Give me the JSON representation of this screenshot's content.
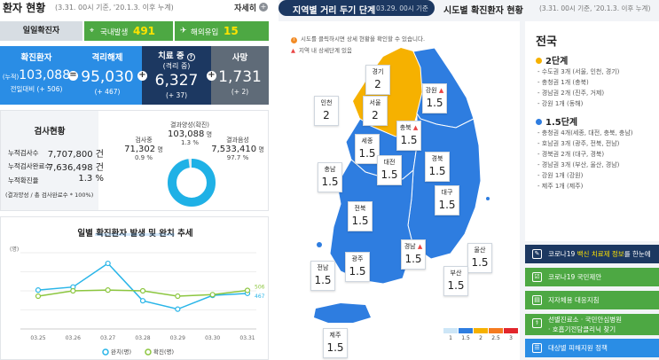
{
  "header": {
    "title": "환자 현황",
    "subtitle": "(3.31. 00시 기준, '20.1.3. 이후 누계)",
    "more": "자세히"
  },
  "daily": {
    "label": "일일확진자",
    "domestic_label": "국내발생",
    "domestic": "491",
    "import_label": "해외유입",
    "import": "15"
  },
  "stats": [
    {
      "title": "확진환자",
      "value": "103,088",
      "prefix": "(누적)",
      "sub": "전일대비 (+ 506)"
    },
    {
      "title": "격리해제",
      "value": "95,030",
      "sub": "(+ 467)"
    },
    {
      "title": "치료 중",
      "title2": "(격리 중)",
      "value": "6,327",
      "sub": "(+ 37)"
    },
    {
      "title": "사망",
      "value": "1,731",
      "sub": "(+ 2)"
    }
  ],
  "ops": [
    "=",
    "+",
    "+",
    "+"
  ],
  "test": {
    "title": "검사현황",
    "rows": [
      {
        "label": "누적검사수",
        "value": "7,707,800",
        "unit": "건"
      },
      {
        "label": "누적검사완료수",
        "value": "7,636,498",
        "unit": "건"
      },
      {
        "label": "누적확진율",
        "value": "1.3",
        "unit": "%"
      }
    ],
    "note": "(결과양성 / 총 검사완료수 * 100%)",
    "positive_label": "결과양성(확진)",
    "positive_value": "103,088",
    "positive_unit": "명",
    "positive_pct": "1.3 %",
    "pending_label": "검사중",
    "pending_value": "71,302",
    "pending_unit": "명",
    "pending_pct": "0.9 %",
    "negative_label": "결과음성",
    "negative_value": "7,533,410",
    "negative_unit": "명",
    "negative_pct": "97.7 %",
    "negative_fraction": 0.977,
    "pending_fraction": 0.009
  },
  "trend": {
    "title": "일별 확진환자 발생 및 완치 추세"
  },
  "chart_data": {
    "type": "line",
    "categories": [
      "03.25",
      "03.26",
      "03.27",
      "03.28",
      "03.29",
      "03.30",
      "03.31"
    ],
    "ylabel": "(명)",
    "series": [
      {
        "name": "완치(명)",
        "color": "#29b5e8",
        "values": [
          510,
          550,
          860,
          370,
          260,
          440,
          467
        ]
      },
      {
        "name": "확진(명)",
        "color": "#8cc63f",
        "values": [
          430,
          500,
          510,
          500,
          430,
          450,
          506
        ]
      }
    ],
    "end_labels": [
      "506",
      "467"
    ],
    "ylim": [
      0,
      1000
    ]
  },
  "right": {
    "tab1": "지역별 거리 두기 단계",
    "tab1_sub": "03.29. 00시 기준",
    "tab2": "시도별 확진환자 현황",
    "tab2_sub": "(3.31. 00시 기준, '20.1.3. 이후 누계)",
    "note1": "시도를 클릭하시면 상세 현황을 확인할 수 있습니다.",
    "note2": "지역 내 상세단계 있음",
    "regions": [
      {
        "name": "경기",
        "level": "2",
        "warn": false
      },
      {
        "name": "강원",
        "level": "1.5",
        "warn": true
      },
      {
        "name": "인천",
        "level": "2",
        "warn": false
      },
      {
        "name": "서울",
        "level": "2",
        "warn": false
      },
      {
        "name": "충북",
        "level": "1.5",
        "warn": true
      },
      {
        "name": "세종",
        "level": "1.5",
        "warn": false
      },
      {
        "name": "대전",
        "level": "1.5",
        "warn": false
      },
      {
        "name": "경북",
        "level": "1.5",
        "warn": false
      },
      {
        "name": "충남",
        "level": "1.5",
        "warn": false
      },
      {
        "name": "대구",
        "level": "1.5",
        "warn": false
      },
      {
        "name": "전북",
        "level": "1.5",
        "warn": false
      },
      {
        "name": "경남",
        "level": "1.5",
        "warn": true
      },
      {
        "name": "울산",
        "level": "1.5",
        "warn": false
      },
      {
        "name": "광주",
        "level": "1.5",
        "warn": false
      },
      {
        "name": "부산",
        "level": "1.5",
        "warn": false
      },
      {
        "name": "전남",
        "level": "1.5",
        "warn": false
      },
      {
        "name": "제주",
        "level": "1.5",
        "warn": false
      }
    ],
    "legend": [
      {
        "label": "1",
        "color": "#cde6f7"
      },
      {
        "label": "1.5",
        "color": "#2e7de0"
      },
      {
        "label": "2",
        "color": "#f6b100"
      },
      {
        "label": "2.5",
        "color": "#f57b20"
      },
      {
        "label": "3",
        "color": "#e2262c"
      }
    ],
    "panel": {
      "title": "전국",
      "lvl1": "2단계",
      "lvl1_items": [
        "- 수도권 3개 (서울, 인천, 경기)",
        "- 충청권 1개 (충북)",
        "- 경남권 2개 (진주, 거제)",
        "- 강원 1개 (동해)"
      ],
      "lvl2": "1.5단계",
      "lvl2_items": [
        "- 충청권 4개(세종, 대전, 충북, 충남)",
        "- 호남권 3개 (광주, 전북, 전남)",
        "- 경북권 2개 (대구, 경북)",
        "- 경남권 3개 (부산, 울산, 경남)",
        "- 강원 1개 (강원)",
        "- 제주 1개 (제주)"
      ]
    },
    "buttons": [
      {
        "pre": "코로나19 ",
        "hl": "백신 치료제 정보",
        "post": "를 한눈에",
        "color": "#1c3861"
      },
      {
        "pre": "코로나19 국민제안",
        "hl": "",
        "post": "",
        "color": "#4da843"
      },
      {
        "pre": "지자체용 대응지침",
        "hl": "",
        "post": "",
        "color": "#4da843"
      },
      {
        "pre": "선별진료소 · 국민안심병원",
        "hl": "",
        "post": "· 호흡기전담클리닉 찾기",
        "color": "#4da843"
      },
      {
        "pre": "대상별 피해지원 정책",
        "hl": "",
        "post": "",
        "color": "#2a8de5"
      }
    ]
  }
}
